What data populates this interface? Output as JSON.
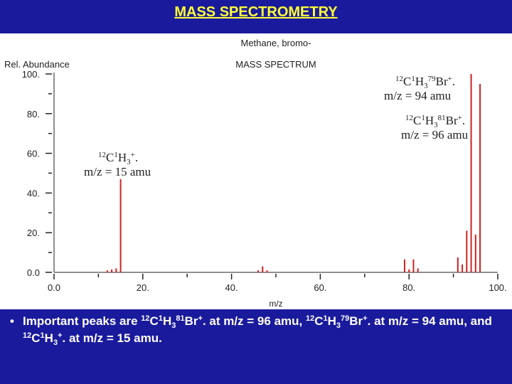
{
  "slide": {
    "title": "MASS SPECTROMETRY",
    "colors": {
      "background": "#1a1a9c",
      "title": "#ffff33",
      "figure_bg": "#ffffff",
      "peak": "#cc2222"
    },
    "bullet_icon": "bullet-dot",
    "bullet_symbol": "•"
  },
  "chart_data": {
    "type": "bar",
    "title": "Methane, bromo-",
    "subtitle": "MASS SPECTRUM",
    "xlabel": "m/z",
    "ylabel": "Rel. Abundance",
    "xlim": [
      0,
      100
    ],
    "ylim": [
      0,
      100
    ],
    "x_ticks": [
      "0.0",
      "20.",
      "40.",
      "60.",
      "80.",
      "100."
    ],
    "y_ticks": [
      "0.0",
      "20.",
      "40.",
      "60.",
      "80.",
      "100."
    ],
    "x": [
      12,
      13,
      14,
      15,
      46,
      47,
      48,
      79,
      80,
      81,
      82,
      91,
      92,
      93,
      94,
      95,
      96
    ],
    "values": [
      1,
      1.5,
      2,
      47,
      1,
      3,
      1,
      6.5,
      1.5,
      6.5,
      2,
      7.5,
      4,
      21,
      100,
      19,
      95
    ],
    "annotations": [
      {
        "pre_sup": "12",
        "main": "C",
        "sup1": "1",
        "main2": "H",
        "sub": "3",
        "sup2": "79",
        "tail": "Br",
        "sup3": "+",
        "end": ".",
        "line2": "m/z = 94 amu"
      },
      {
        "pre_sup": "12",
        "main": "C",
        "sup1": "1",
        "main2": "H",
        "sub": "3",
        "sup2": "81",
        "tail": "Br",
        "sup3": "+",
        "end": ".",
        "line2": "m/z = 96 amu"
      },
      {
        "pre_sup": "12",
        "main": "C",
        "sup1": "1",
        "main2": "H",
        "sub": "3",
        "sup2": "",
        "tail": "",
        "sup3": "+",
        "end": ".",
        "line2": "m/z = 15 amu"
      }
    ]
  },
  "bullet": {
    "p1": "Important peaks are ",
    "s1": "12",
    "p2": "C",
    "s2": "1",
    "p3": "H",
    "b1": "3",
    "s3": "81",
    "p4": "Br",
    "s4": "+",
    "p5": ". at m/z = 96 amu, ",
    "s5": "12",
    "p6": "C",
    "s6": "1",
    "p7": "H",
    "b2": "3",
    "s7": "79",
    "p8": "Br",
    "s8": "+",
    "p9": ". at m/z = 94 amu, and ",
    "s9": "12",
    "p10": "C",
    "s10": "1",
    "p11": "H",
    "b3": "3",
    "s11": "+",
    "p12": ". at m/z = 15 amu."
  }
}
